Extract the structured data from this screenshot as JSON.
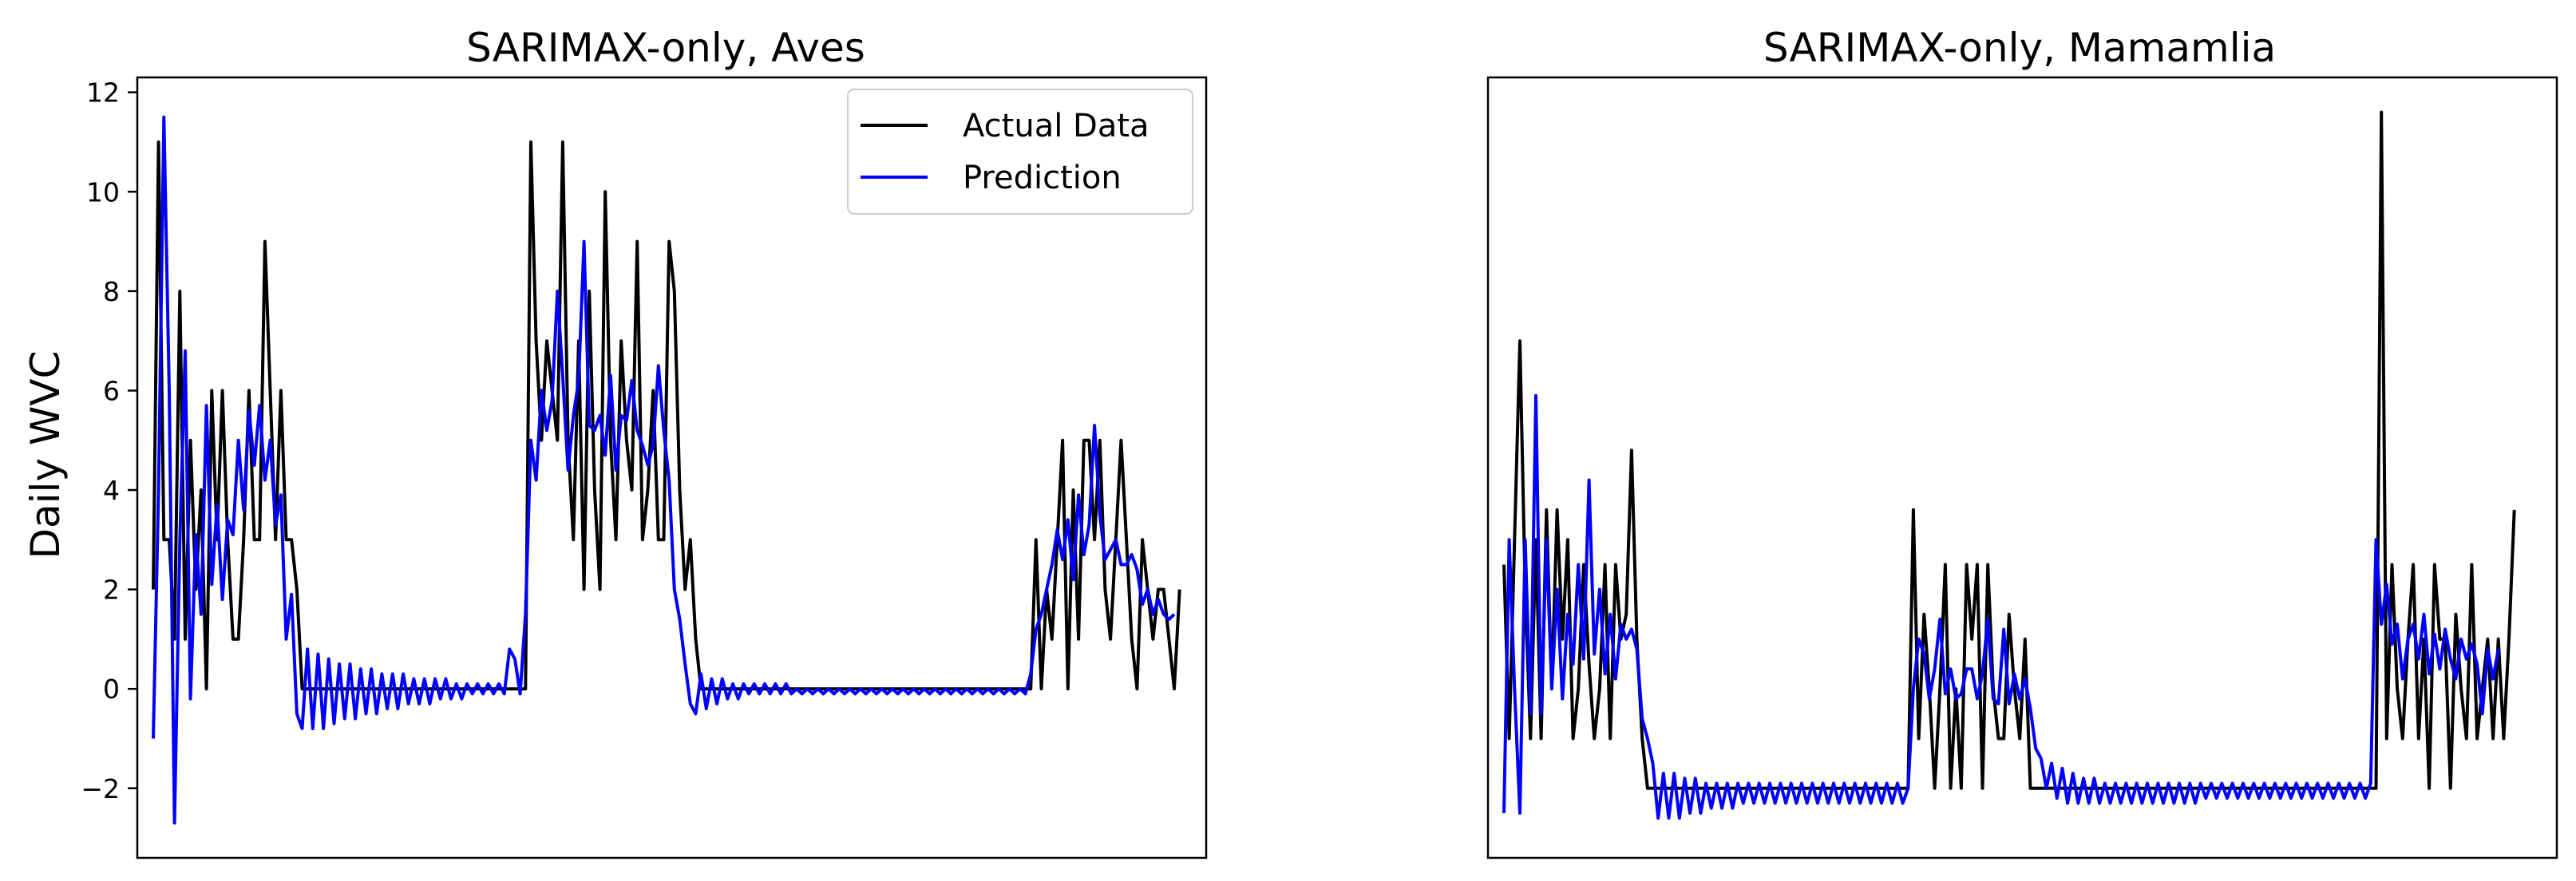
{
  "chart_data": [
    {
      "type": "line",
      "title": "SARIMAX-only, Aves",
      "xlabel": "",
      "ylabel": "Daily WVC",
      "ylim": [
        -3.4,
        12.3
      ],
      "xlim": [
        -3,
        198
      ],
      "yticks": [
        -2,
        0,
        2,
        4,
        6,
        8,
        10,
        12
      ],
      "ytick_labels": [
        "−2",
        "0",
        "2",
        "4",
        "6",
        "8",
        "10",
        "12"
      ],
      "x_ticks_visible": false,
      "grid": false,
      "legend": {
        "placement": "top-right",
        "entries": [
          "Actual Data",
          "Prediction"
        ]
      },
      "series": [
        {
          "name": "Actual Data",
          "color": "#000000",
          "values": [
            2,
            11,
            3,
            3,
            1,
            8,
            1,
            5,
            2,
            4,
            0,
            6,
            3,
            6,
            3,
            1,
            1,
            3,
            6,
            3,
            3,
            9,
            6,
            3,
            6,
            3,
            3,
            2,
            0,
            0,
            0,
            0,
            0,
            0,
            0,
            0,
            0,
            0,
            0,
            0,
            0,
            0,
            0,
            0,
            0,
            0,
            0,
            0,
            0,
            0,
            0,
            0,
            0,
            0,
            0,
            0,
            0,
            0,
            0,
            0,
            0,
            0,
            0,
            0,
            0,
            0,
            0,
            0,
            0,
            0,
            0,
            11,
            7,
            5,
            7,
            6,
            5,
            11,
            5,
            3,
            7,
            2,
            8,
            4,
            2,
            10,
            5,
            3,
            7,
            5,
            4,
            9,
            3,
            4,
            6,
            3,
            3,
            9,
            8,
            4,
            2,
            3,
            1,
            0,
            0,
            0,
            0,
            0,
            0,
            0,
            0,
            0,
            0,
            0,
            0,
            0,
            0,
            0,
            0,
            0,
            0,
            0,
            0,
            0,
            0,
            0,
            0,
            0,
            0,
            0,
            0,
            0,
            0,
            0,
            0,
            0,
            0,
            0,
            0,
            0,
            0,
            0,
            0,
            0,
            0,
            0,
            0,
            0,
            0,
            0,
            0,
            0,
            0,
            0,
            0,
            0,
            0,
            0,
            0,
            0,
            0,
            0,
            0,
            0,
            0,
            0,
            3,
            0,
            2,
            1,
            3,
            5,
            0,
            4,
            1,
            5,
            5,
            3,
            5,
            2,
            1,
            3,
            5,
            3,
            1,
            0,
            3,
            2,
            1,
            2,
            2,
            1,
            0,
            2
          ]
        },
        {
          "name": "Prediction",
          "color": "#0000ff",
          "values": [
            -1,
            4,
            11.5,
            6,
            -2.7,
            3,
            6.8,
            -0.2,
            3.1,
            1.5,
            5.7,
            2.1,
            3.7,
            1.8,
            3.4,
            3.1,
            5,
            3.6,
            5.6,
            4.5,
            5.7,
            4.2,
            5,
            3.3,
            3.9,
            1,
            1.9,
            -0.5,
            -0.8,
            0.8,
            -0.8,
            0.7,
            -0.8,
            0.6,
            -0.7,
            0.5,
            -0.6,
            0.5,
            -0.6,
            0.4,
            -0.5,
            0.4,
            -0.5,
            0.3,
            -0.4,
            0.3,
            -0.4,
            0.3,
            -0.3,
            0.2,
            -0.3,
            0.2,
            -0.3,
            0.2,
            -0.2,
            0.2,
            -0.2,
            0.1,
            -0.2,
            0.1,
            -0.1,
            0.1,
            -0.1,
            0.1,
            -0.1,
            0.1,
            -0.1,
            0.8,
            0.6,
            -0.1,
            1.5,
            5,
            4.2,
            6,
            5.2,
            5.8,
            8,
            6.3,
            4.4,
            5.5,
            6.2,
            9,
            5.3,
            5.2,
            5.5,
            4.7,
            6.3,
            4.4,
            5.5,
            5.4,
            6.2,
            5.2,
            4.9,
            4.5,
            4.9,
            6.5,
            5.2,
            4.2,
            2,
            1.4,
            0.5,
            -0.3,
            -0.5,
            0.3,
            -0.4,
            0.2,
            -0.3,
            0.2,
            -0.2,
            0.1,
            -0.2,
            0.1,
            -0.1,
            0.1,
            -0.1,
            0.1,
            -0.1,
            0.1,
            -0.1,
            0.1,
            -0.1,
            0,
            -0.1,
            0,
            -0.1,
            0,
            -0.1,
            0,
            -0.1,
            0,
            -0.1,
            0,
            -0.1,
            0,
            -0.1,
            0,
            -0.1,
            0,
            -0.1,
            0,
            -0.1,
            0,
            -0.1,
            0,
            -0.1,
            0,
            -0.1,
            0,
            -0.1,
            0,
            -0.1,
            0,
            -0.1,
            0,
            -0.1,
            0,
            -0.1,
            0,
            -0.1,
            0,
            -0.1,
            0,
            -0.1,
            0,
            -0.1,
            0.3,
            1.2,
            1.5,
            2,
            2.5,
            3.2,
            2.6,
            3.4,
            2.2,
            3.9,
            2.7,
            3.3,
            5.3,
            3.5,
            2.6,
            2.8,
            3,
            2.5,
            2.5,
            2.7,
            2.4,
            1.7,
            2,
            1.5,
            1.8,
            1.5,
            1.4,
            1.5
          ]
        }
      ]
    },
    {
      "type": "line",
      "title": "SARIMAX-only, Mamamlia",
      "xlabel": "",
      "ylabel": "",
      "ylim": [
        -3.4,
        12.3
      ],
      "xlim": [
        -3,
        198
      ],
      "y_ticks_visible": false,
      "x_ticks_visible": false,
      "grid": false,
      "series": [
        {
          "name": "Actual Data",
          "color": "#000000",
          "values": [
            2.5,
            -1,
            3,
            7,
            2,
            -1,
            3,
            -1,
            3.6,
            0,
            3.6,
            1,
            3,
            -1,
            0,
            2.5,
            0.5,
            -1,
            0,
            2.5,
            -1,
            2.5,
            1,
            1.5,
            4.8,
            1,
            -1,
            -2,
            -2,
            -2,
            -2,
            -2,
            -2,
            -2,
            -2,
            -2,
            -2,
            -2,
            -2,
            -2,
            -2,
            -2,
            -2,
            -2,
            -2,
            -2,
            -2,
            -2,
            -2,
            -2,
            -2,
            -2,
            -2,
            -2,
            -2,
            -2,
            -2,
            -2,
            -2,
            -2,
            -2,
            -2,
            -2,
            -2,
            -2,
            -2,
            -2,
            -2,
            -2,
            -2,
            -2,
            -2,
            -2,
            -2,
            -2,
            -2,
            -2,
            3.6,
            -1,
            1.5,
            0,
            -2,
            0,
            2.5,
            -2,
            0,
            -2,
            2.5,
            1,
            2.5,
            -2,
            2.5,
            0,
            -1,
            -1,
            1.5,
            0,
            -1,
            1,
            -2,
            -2,
            -2,
            -2,
            -2,
            -2,
            -2,
            -2,
            -2,
            -2,
            -2,
            -2,
            -2,
            -2,
            -2,
            -2,
            -2,
            -2,
            -2,
            -2,
            -2,
            -2,
            -2,
            -2,
            -2,
            -2,
            -2,
            -2,
            -2,
            -2,
            -2,
            -2,
            -2,
            -2,
            -2,
            -2,
            -2,
            -2,
            -2,
            -2,
            -2,
            -2,
            -2,
            -2,
            -2,
            -2,
            -2,
            -2,
            -2,
            -2,
            -2,
            -2,
            -2,
            -2,
            -2,
            -2,
            -2,
            -2,
            -2,
            -2,
            -2,
            -2,
            -2,
            -2,
            -2,
            -2,
            11.6,
            -1,
            2.5,
            0,
            -1,
            1,
            2.5,
            -1,
            1,
            -2,
            2.5,
            1,
            1,
            -2,
            1.5,
            0,
            -1,
            2.5,
            -1,
            0,
            1,
            -1,
            1,
            -1,
            1,
            3.6
          ]
        },
        {
          "name": "Prediction",
          "color": "#0000ff",
          "values": [
            -2.5,
            3,
            0,
            -2.5,
            3,
            -0.5,
            5.9,
            -0.5,
            3,
            0,
            2,
            -0.2,
            1.5,
            0.5,
            2.5,
            0.6,
            4.2,
            0.7,
            2,
            0.3,
            1.5,
            0.2,
            1.3,
            1,
            1.2,
            0.8,
            -0.6,
            -1,
            -1.5,
            -2.6,
            -1.7,
            -2.6,
            -1.7,
            -2.6,
            -1.8,
            -2.5,
            -1.8,
            -2.5,
            -1.9,
            -2.4,
            -1.9,
            -2.4,
            -1.9,
            -2.4,
            -1.9,
            -2.3,
            -1.9,
            -2.3,
            -1.9,
            -2.3,
            -1.9,
            -2.3,
            -1.9,
            -2.3,
            -1.9,
            -2.3,
            -1.9,
            -2.3,
            -1.9,
            -2.3,
            -1.9,
            -2.3,
            -1.9,
            -2.3,
            -1.9,
            -2.3,
            -1.9,
            -2.3,
            -1.9,
            -2.3,
            -1.9,
            -2.3,
            -1.9,
            -2.3,
            -1.9,
            -2.3,
            -2,
            0,
            1,
            0.7,
            -0.2,
            0.4,
            1.4,
            -0.1,
            0.4,
            -0.2,
            -0.1,
            0.4,
            0.4,
            -0.2,
            0.3,
            1.4,
            -0.2,
            -0.3,
            1.2,
            -0.3,
            0.3,
            -0.2,
            0.2,
            -0.4,
            -1.2,
            -1.4,
            -2,
            -1.5,
            -2.2,
            -1.6,
            -2.3,
            -1.7,
            -2.3,
            -1.8,
            -2.3,
            -1.8,
            -2.3,
            -1.9,
            -2.3,
            -1.9,
            -2.3,
            -1.9,
            -2.3,
            -1.9,
            -2.3,
            -1.9,
            -2.3,
            -1.9,
            -2.3,
            -1.9,
            -2.3,
            -1.9,
            -2.3,
            -1.9,
            -2.3,
            -1.9,
            -2.2,
            -1.9,
            -2.2,
            -1.9,
            -2.2,
            -1.9,
            -2.2,
            -1.9,
            -2.2,
            -1.9,
            -2.2,
            -1.9,
            -2.2,
            -1.9,
            -2.2,
            -1.9,
            -2.2,
            -1.9,
            -2.2,
            -1.9,
            -2.2,
            -1.9,
            -2.2,
            -1.9,
            -2.2,
            -1.9,
            -2.2,
            -1.9,
            -2.2,
            -1.9,
            -2.2,
            -1.9,
            3,
            1.3,
            2.1,
            0.9,
            1.3,
            0.2,
            1,
            1.3,
            0.6,
            1.5,
            0.3,
            1.1,
            0.4,
            1.2,
            0.6,
            0.2,
            1,
            0.6,
            0.9,
            0.5,
            -0.5,
            0.8,
            0.2,
            0.8
          ]
        }
      ]
    }
  ]
}
